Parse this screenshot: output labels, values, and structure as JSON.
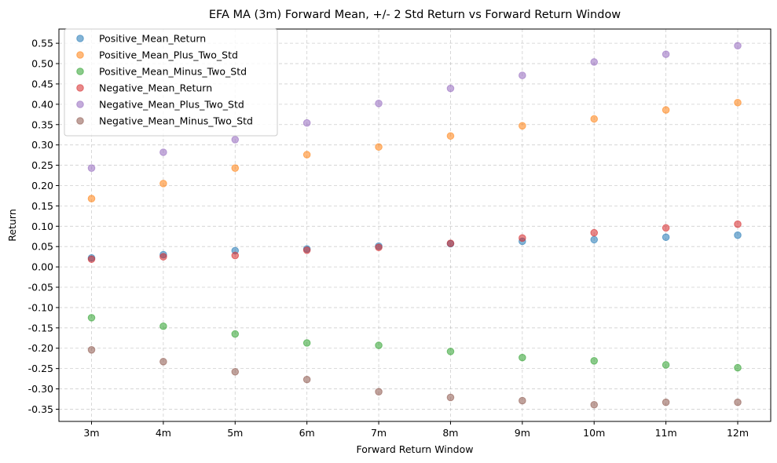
{
  "chart_data": {
    "type": "scatter",
    "title": "EFA MA (3m) Forward Mean, +/- 2 Std Return vs Forward Return Window",
    "xlabel": "Forward Return Window",
    "ylabel": "Return",
    "categories": [
      "3m",
      "4m",
      "5m",
      "6m",
      "7m",
      "8m",
      "9m",
      "10m",
      "11m",
      "12m"
    ],
    "ylim": [
      -0.38,
      0.585
    ],
    "yticks": [
      -0.35,
      -0.3,
      -0.25,
      -0.2,
      -0.15,
      -0.1,
      -0.05,
      0.0,
      0.05,
      0.1,
      0.15,
      0.2,
      0.25,
      0.3,
      0.35,
      0.4,
      0.45,
      0.5,
      0.55
    ],
    "ytick_labels": [
      "-0.35",
      "-0.30",
      "-0.25",
      "-0.20",
      "-0.15",
      "-0.10",
      "-0.05",
      "0.00",
      "0.05",
      "0.10",
      "0.15",
      "0.20",
      "0.25",
      "0.30",
      "0.35",
      "0.40",
      "0.45",
      "0.50",
      "0.55"
    ],
    "grid": true,
    "legend_position": "top-left",
    "series": [
      {
        "name": "Positive_Mean_Return",
        "color": "#1f77b4",
        "values": [
          0.022,
          0.03,
          0.04,
          0.044,
          0.051,
          0.057,
          0.063,
          0.067,
          0.073,
          0.078
        ]
      },
      {
        "name": "Positive_Mean_Plus_Two_Std",
        "color": "#ff7f0e",
        "values": [
          0.168,
          0.205,
          0.243,
          0.276,
          0.295,
          0.322,
          0.347,
          0.364,
          0.386,
          0.404
        ]
      },
      {
        "name": "Positive_Mean_Minus_Two_Std",
        "color": "#2ca02c",
        "values": [
          -0.125,
          -0.146,
          -0.165,
          -0.187,
          -0.193,
          -0.208,
          -0.223,
          -0.231,
          -0.241,
          -0.248
        ]
      },
      {
        "name": "Negative_Mean_Return",
        "color": "#d62728",
        "values": [
          0.019,
          0.025,
          0.028,
          0.041,
          0.048,
          0.058,
          0.071,
          0.084,
          0.096,
          0.105
        ]
      },
      {
        "name": "Negative_Mean_Plus_Two_Std",
        "color": "#9467bd",
        "values": [
          0.243,
          0.282,
          0.313,
          0.354,
          0.402,
          0.439,
          0.471,
          0.504,
          0.523,
          0.544
        ]
      },
      {
        "name": "Negative_Mean_Minus_Two_Std",
        "color": "#8c564b",
        "values": [
          -0.204,
          -0.233,
          -0.258,
          -0.277,
          -0.307,
          -0.321,
          -0.329,
          -0.339,
          -0.333,
          -0.333
        ]
      }
    ]
  }
}
